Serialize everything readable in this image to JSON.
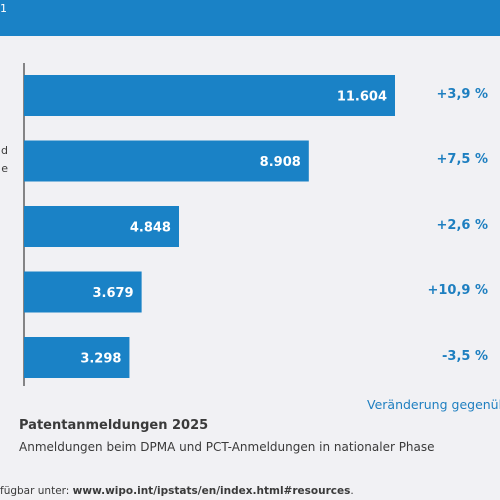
{
  "header": {
    "fragment": "1"
  },
  "colors": {
    "header": "#1a82c6",
    "bar": "#1a82c6",
    "accent": "#1e7fc0",
    "text": "#3a3a3a",
    "background": "#f1f1f4"
  },
  "left_label_fragment": [
    "d",
    "e"
  ],
  "chart_data": {
    "type": "bar",
    "orientation": "horizontal",
    "categories": [
      "",
      "",
      "",
      "",
      ""
    ],
    "values": [
      11604,
      8908,
      4848,
      3679,
      3298
    ],
    "value_labels": [
      "11.604",
      "8.908",
      "4.848",
      "3.679",
      "3.298"
    ],
    "changes": [
      "+3,9 %",
      "+7,5 %",
      "+2,6 %",
      "+10,9 %",
      "-3,5 %"
    ],
    "xlim": [
      0,
      12000
    ],
    "grid": false,
    "change_header": "Veränderung gegenüber",
    "title": "Patentanmeldungen 2025",
    "subtitle": "Anmeldungen beim DPMA und PCT-Anmeldungen in nationaler Phase"
  },
  "source": {
    "prefix": "fügbar unter: ",
    "url": "www.wipo.int/ipstats/en/index.html#resources",
    "suffix": "."
  }
}
